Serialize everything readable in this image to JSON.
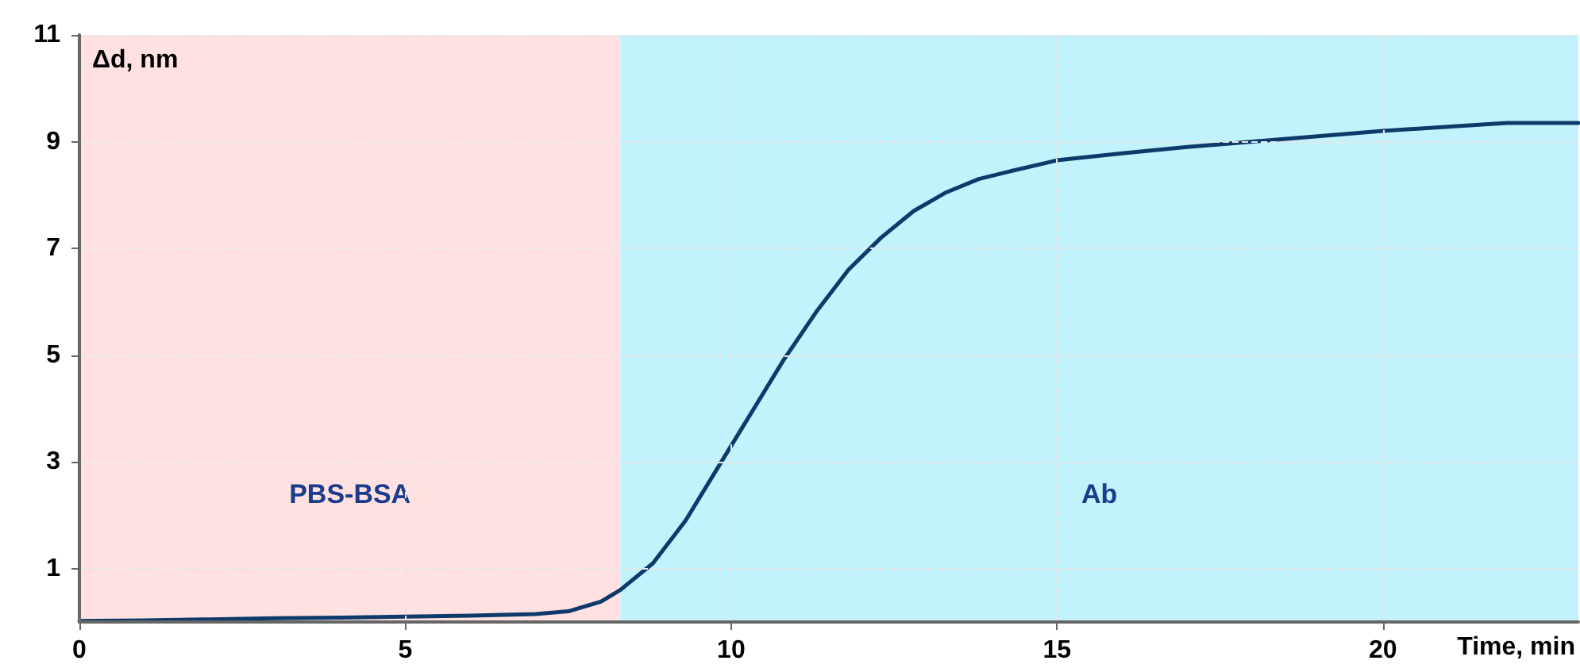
{
  "chart_data": {
    "type": "line",
    "xlabel": "Time, min",
    "ylabel": "Δd, nm",
    "series": [
      {
        "color": "#0d3a6b",
        "x": [
          0,
          1,
          2,
          3,
          4,
          5,
          6,
          7,
          7.5,
          8,
          8.3,
          8.8,
          9.3,
          9.8,
          10.3,
          10.8,
          11.3,
          11.8,
          12.3,
          12.8,
          13.3,
          13.8,
          14.3,
          15,
          16,
          17,
          18,
          19,
          20,
          21,
          21.9,
          23
        ],
        "values": [
          0.02,
          0.03,
          0.05,
          0.07,
          0.08,
          0.1,
          0.12,
          0.15,
          0.2,
          0.38,
          0.6,
          1.1,
          1.9,
          2.9,
          3.9,
          4.9,
          5.8,
          6.6,
          7.2,
          7.7,
          8.05,
          8.3,
          8.45,
          8.65,
          8.78,
          8.9,
          9.0,
          9.1,
          9.2,
          9.28,
          9.35,
          9.35
        ]
      }
    ],
    "xlim": [
      0,
      23
    ],
    "xticks": [
      0,
      5,
      10,
      15,
      20
    ],
    "ylim": [
      0,
      11
    ],
    "yticks": [
      1,
      3,
      5,
      7,
      9,
      11
    ],
    "bands": [
      {
        "axis": "x",
        "from": 0,
        "to": 8.3,
        "label": "PBS-BSA",
        "color": "#ffe1e1"
      },
      {
        "axis": "x",
        "from": 8.3,
        "to": 23,
        "label": "Ab",
        "color": "#c2f2fc"
      }
    ],
    "grid": true,
    "marker": "none",
    "line_style": "solid"
  }
}
